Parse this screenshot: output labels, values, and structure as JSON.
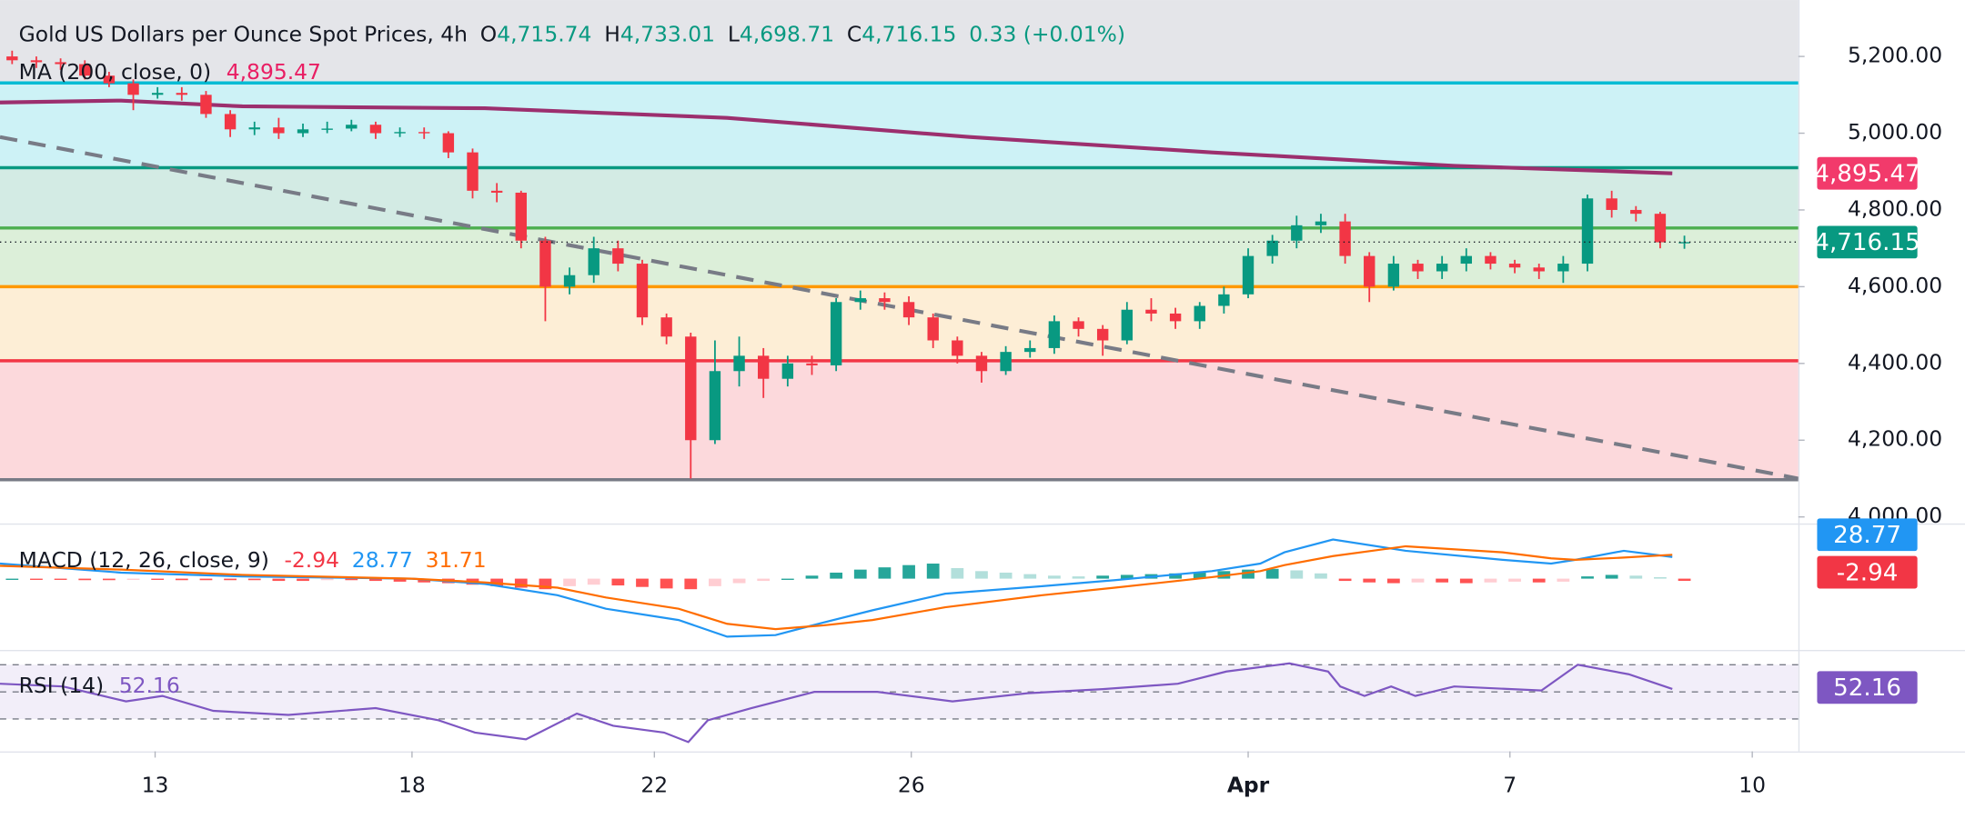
{
  "chart_data": {
    "type": "candlestick",
    "header": {
      "title": "Gold US Dollars per Ounce Spot Prices, 4h",
      "fields": [
        {
          "key": "O",
          "label": "4,715.74"
        },
        {
          "key": "H",
          "label": "4,733.01"
        },
        {
          "key": "L",
          "label": "4,698.71"
        },
        {
          "key": "C",
          "label": "4,716.15"
        }
      ],
      "change": "0.33 (+0.01%)"
    },
    "xlim": [
      0,
      74.2
    ],
    "xticks": [
      {
        "value": 6.4,
        "label": "13"
      },
      {
        "value": 17,
        "label": "18"
      },
      {
        "value": 27,
        "label": "22"
      },
      {
        "value": 37.6,
        "label": "26"
      },
      {
        "value": 51.5,
        "label": "Apr"
      },
      {
        "value": 62.3,
        "label": "7"
      },
      {
        "value": 72.3,
        "label": "10"
      }
    ],
    "ylim": [
      3983,
      5347
    ],
    "yticks": [
      {
        "value": 5200,
        "label": "5,200.00"
      },
      {
        "value": 5000,
        "label": "5,000.00"
      },
      {
        "value": 4800,
        "label": "4,800.00"
      },
      {
        "value": 4600,
        "label": "4,600.00"
      },
      {
        "value": 4400,
        "label": "4,400.00"
      },
      {
        "value": 4200,
        "label": "4,200.00"
      },
      {
        "value": 4000,
        "label": "4,000.00"
      }
    ],
    "up_color": "#089981",
    "down_color": "#f23645",
    "candles": {
      "open": [
        5200,
        5190,
        5185,
        5180,
        5150,
        5130,
        5100,
        5105,
        5100,
        5050,
        5010,
        5015,
        5000,
        5010,
        5012,
        5022,
        5000,
        5003,
        5000,
        4950,
        4850,
        4845,
        4720,
        4600,
        4630,
        4700,
        4660,
        4520,
        4470,
        4200,
        4380,
        4420,
        4360,
        4400,
        4395,
        4560,
        4570,
        4560,
        4520,
        4460,
        4420,
        4380,
        4430,
        4440,
        4510,
        4490,
        4460,
        4540,
        4530,
        4510,
        4550,
        4580,
        4680,
        4720,
        4760,
        4770,
        4680,
        4600,
        4660,
        4640,
        4660,
        4680,
        4660,
        4650,
        4640,
        4660,
        4830,
        4800,
        4790,
        4715.74
      ],
      "high": [
        5215,
        5200,
        5195,
        5190,
        5160,
        5140,
        5120,
        5120,
        5110,
        5060,
        5030,
        5040,
        5025,
        5030,
        5035,
        5030,
        5015,
        5015,
        5005,
        4960,
        4870,
        4850,
        4730,
        4650,
        4730,
        4720,
        4670,
        4530,
        4480,
        4460,
        4470,
        4440,
        4420,
        4420,
        4570,
        4590,
        4585,
        4575,
        4530,
        4470,
        4430,
        4445,
        4460,
        4525,
        4520,
        4500,
        4560,
        4570,
        4545,
        4560,
        4600,
        4700,
        4735,
        4785,
        4790,
        4790,
        4690,
        4680,
        4670,
        4680,
        4700,
        4690,
        4670,
        4660,
        4680,
        4840,
        4850,
        4810,
        4795,
        4733.01
      ],
      "low": [
        5180,
        5170,
        5165,
        5140,
        5120,
        5060,
        5090,
        5085,
        5040,
        4990,
        4995,
        4985,
        4990,
        5000,
        5005,
        4985,
        4990,
        4985,
        4935,
        4830,
        4820,
        4700,
        4510,
        4580,
        4610,
        4640,
        4500,
        4450,
        4100,
        4190,
        4340,
        4310,
        4340,
        4370,
        4380,
        4540,
        4540,
        4500,
        4440,
        4400,
        4350,
        4370,
        4415,
        4425,
        4470,
        4420,
        4450,
        4510,
        4490,
        4490,
        4530,
        4570,
        4660,
        4700,
        4740,
        4660,
        4560,
        4590,
        4620,
        4620,
        4640,
        4645,
        4635,
        4620,
        4610,
        4640,
        4780,
        4770,
        4700,
        4698.71
      ],
      "close": [
        5190,
        5185,
        5180,
        5150,
        5130,
        5100,
        5105,
        5100,
        5050,
        5010,
        5015,
        5000,
        5010,
        5012,
        5022,
        5000,
        5003,
        5000,
        4950,
        4850,
        4845,
        4720,
        4600,
        4630,
        4700,
        4660,
        4520,
        4470,
        4200,
        4380,
        4420,
        4360,
        4400,
        4395,
        4560,
        4570,
        4560,
        4520,
        4460,
        4420,
        4380,
        4430,
        4440,
        4510,
        4490,
        4460,
        4540,
        4530,
        4510,
        4550,
        4580,
        4680,
        4720,
        4760,
        4770,
        4680,
        4600,
        4660,
        4640,
        4660,
        4680,
        4660,
        4650,
        4640,
        4660,
        4830,
        4800,
        4790,
        4715.74,
        4716.15
      ]
    },
    "above_fill": "#e4e5e9",
    "levels": [
      {
        "value": 5131,
        "color": "#00bcd4",
        "fill": "#cdf2f6"
      },
      {
        "value": 4910,
        "color": "#089981",
        "fill": "#d3ebe4"
      },
      {
        "value": 4753,
        "color": "#4caf50",
        "fill": "#dcefd9"
      },
      {
        "value": 4600,
        "color": "#ff9800",
        "fill": "#fdeed6"
      },
      {
        "value": 4407,
        "color": "#f23645",
        "fill": "#fcd9dc"
      },
      {
        "value": 4097,
        "color": "#787b86",
        "fill": "#ffffff"
      }
    ],
    "trendline": {
      "x": [
        0,
        74.2
      ],
      "values": [
        4990,
        4100
      ],
      "color": "#787b86"
    },
    "ma": {
      "name": "MA (200, close, 0)",
      "value_label": "4,895.47",
      "color": "#9c2f6e",
      "badge_color": "#f23a6b",
      "x": [
        0,
        5,
        10,
        20,
        30,
        40,
        50,
        60,
        69
      ],
      "values": [
        5080,
        5085,
        5070,
        5065,
        5040,
        4990,
        4950,
        4915,
        4895.47
      ]
    },
    "macd": {
      "name": "MACD (12, 26, close, 9)",
      "hist_label": "-2.94",
      "macd_label": "28.77",
      "signal_label": "31.71",
      "ylim": [
        -93,
        70
      ],
      "macd_color": "#2196f3",
      "signal_color": "#ff6d00",
      "hist_colors": [
        "#26a69a",
        "#b2dfdb",
        "#ff5252",
        "#ffcdd2"
      ],
      "x": [
        0,
        5,
        10,
        17,
        20,
        23,
        25,
        28,
        30,
        32,
        34,
        36,
        39,
        43,
        46,
        50,
        52,
        53,
        55,
        58,
        62,
        64,
        65,
        67,
        69
      ],
      "macd_values": [
        20,
        8,
        3,
        0,
        -7,
        -22,
        -40,
        -55,
        -77,
        -75,
        -58,
        -42,
        -20,
        -10,
        -2,
        10,
        20,
        35,
        52,
        37,
        25,
        20,
        25,
        37,
        28.77
      ],
      "signal_values": [
        17,
        12,
        5,
        0,
        -5,
        -12,
        -25,
        -40,
        -60,
        -67,
        -62,
        -55,
        -38,
        -22,
        -12,
        2,
        10,
        18,
        30,
        43,
        35,
        27,
        25,
        28,
        31.71
      ],
      "histogram": [
        0,
        -1,
        -1,
        -2,
        -2,
        -1,
        -1,
        -2,
        -2,
        -2,
        -2,
        -3,
        -3,
        -2,
        -2,
        -3,
        -4,
        -5,
        -6,
        -8,
        -10,
        -12,
        -14,
        -10,
        -8,
        -9,
        -11,
        -13,
        -14,
        -10,
        -6,
        -3,
        0,
        4,
        8,
        12,
        15,
        18,
        20,
        14,
        10,
        8,
        6,
        4,
        3,
        4,
        5,
        6,
        7,
        8,
        10,
        12,
        13,
        11,
        7,
        -3,
        -5,
        -6,
        -5,
        -5,
        -6,
        -5,
        -4,
        -5,
        -4,
        3,
        5,
        4,
        2,
        -2.94
      ]
    },
    "rsi": {
      "name": "RSI (14)",
      "value_label": "52.16",
      "color": "#7e57c2",
      "ylim": [
        8,
        80
      ],
      "yticks": [
        70,
        50,
        30
      ],
      "x": [
        0,
        2.6,
        5.2,
        6.7,
        8.8,
        11.9,
        15.5,
        18.1,
        19.6,
        21.7,
        23.8,
        25.3,
        27.4,
        28.4,
        29.2,
        31,
        33.6,
        36.2,
        39.3,
        42.4,
        45.5,
        48.6,
        50.6,
        53.2,
        54.8,
        55.3,
        56.3,
        57.4,
        58.4,
        60,
        63.6,
        65.1,
        67.2,
        69
      ],
      "values": [
        56,
        54,
        43,
        47,
        36,
        33,
        38,
        29,
        20,
        15,
        34,
        25,
        20,
        13,
        29,
        38,
        50,
        50,
        43,
        49,
        52,
        56,
        65,
        71,
        65,
        54,
        47,
        54,
        47,
        54,
        51,
        70,
        63,
        52.16
      ]
    }
  }
}
